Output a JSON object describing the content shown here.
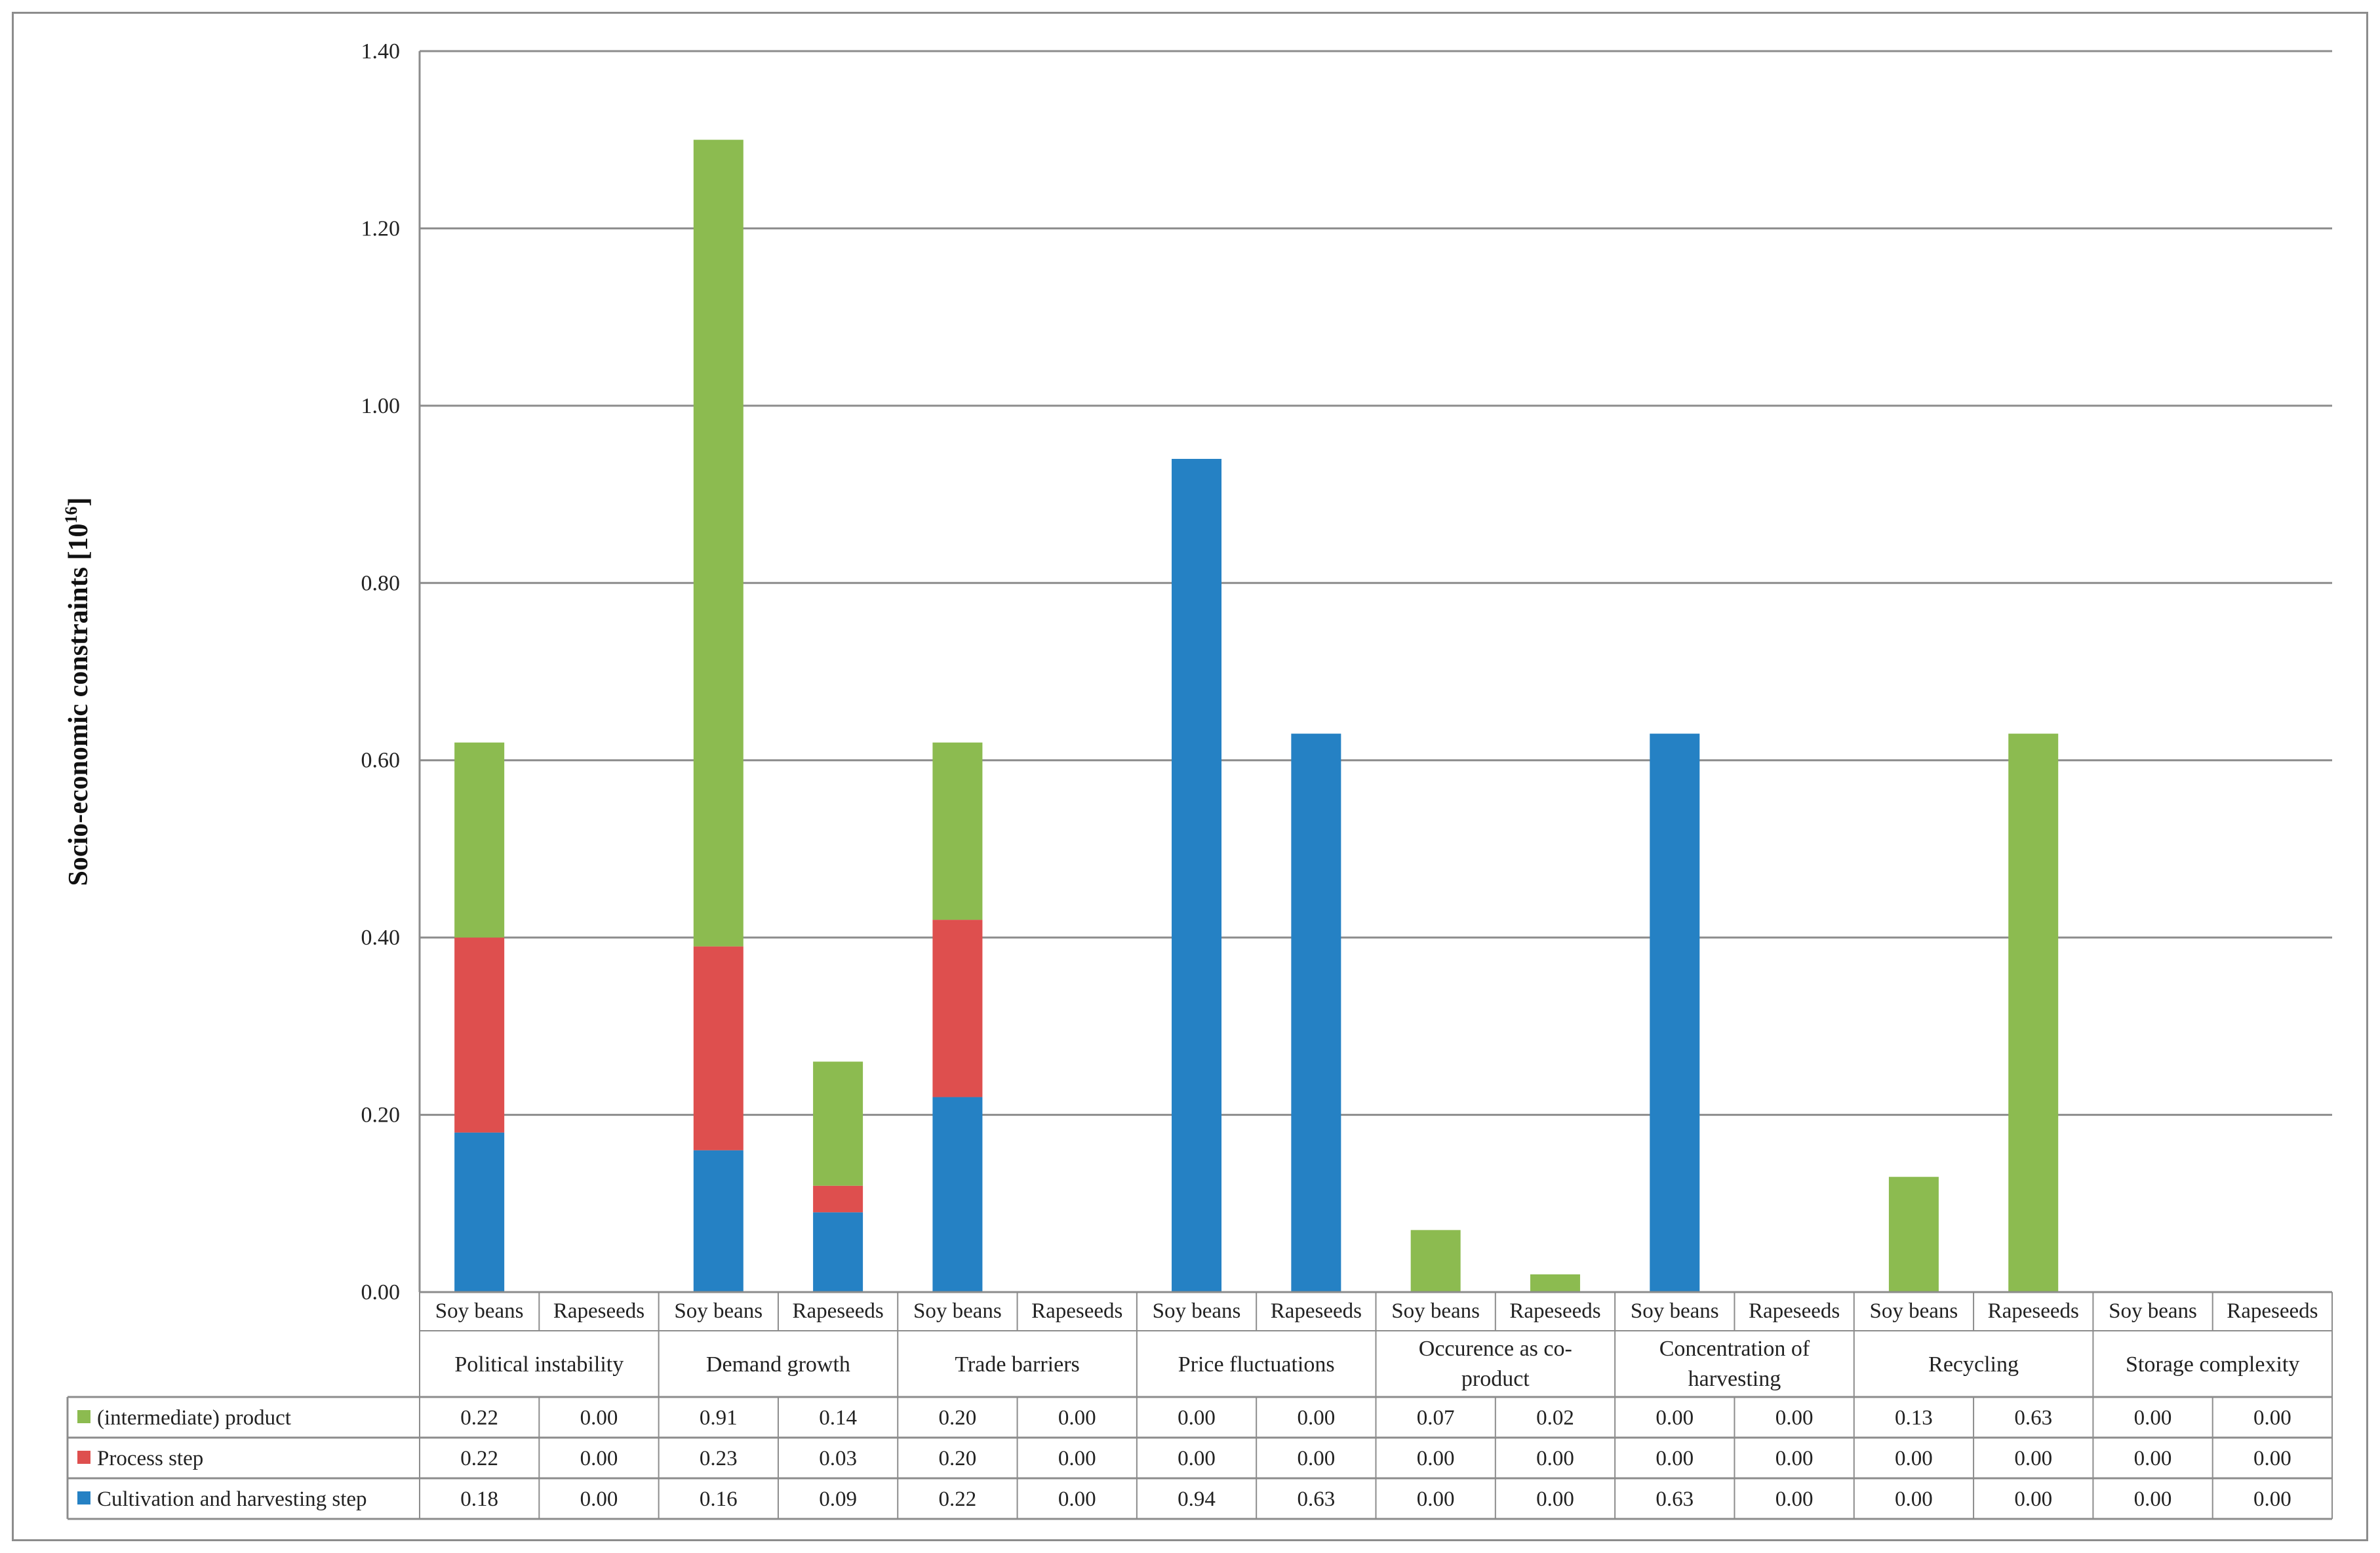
{
  "chart_data": {
    "type": "bar",
    "stacked": true,
    "ylabel": "Socio-economic constraints [10",
    "ylabel_sup": "16",
    "ylabel_suffix": "]",
    "ylim": [
      0,
      1.4
    ],
    "yticks": [
      "0.00",
      "0.20",
      "0.40",
      "0.60",
      "0.80",
      "1.00",
      "1.20",
      "1.40"
    ],
    "grid": true,
    "groups": [
      {
        "label": [
          "Political instability"
        ]
      },
      {
        "label": [
          "Demand growth"
        ]
      },
      {
        "label": [
          "Trade barriers"
        ]
      },
      {
        "label": [
          "Price fluctuations"
        ]
      },
      {
        "label": [
          "Occurence as co-",
          "product"
        ]
      },
      {
        "label": [
          "Concentration of",
          "harvesting"
        ]
      },
      {
        "label": [
          "Recycling"
        ]
      },
      {
        "label": [
          "Storage complexity"
        ]
      }
    ],
    "subcategories": [
      "Soy beans",
      "Rapeseeds"
    ],
    "series": [
      {
        "name": "Cultivation and harvesting step",
        "color": "#2581c4",
        "values": [
          0.18,
          0.0,
          0.16,
          0.09,
          0.22,
          0.0,
          0.94,
          0.63,
          0.0,
          0.0,
          0.63,
          0.0,
          0.0,
          0.0,
          0.0,
          0.0
        ],
        "labels": [
          "0.18",
          "0.00",
          "0.16",
          "0.09",
          "0.22",
          "0.00",
          "0.94",
          "0.63",
          "0.00",
          "0.00",
          "0.63",
          "0.00",
          "0.00",
          "0.00",
          "0.00",
          "0.00"
        ]
      },
      {
        "name": "Process step",
        "color": "#de4f4e",
        "values": [
          0.22,
          0.0,
          0.23,
          0.03,
          0.2,
          0.0,
          0.0,
          0.0,
          0.0,
          0.0,
          0.0,
          0.0,
          0.0,
          0.0,
          0.0,
          0.0
        ],
        "labels": [
          "0.22",
          "0.00",
          "0.23",
          "0.03",
          "0.20",
          "0.00",
          "0.00",
          "0.00",
          "0.00",
          "0.00",
          "0.00",
          "0.00",
          "0.00",
          "0.00",
          "0.00",
          "0.00"
        ]
      },
      {
        "name": "(intermediate) product",
        "color": "#8cbb50",
        "values": [
          0.22,
          0.0,
          0.91,
          0.14,
          0.2,
          0.0,
          0.0,
          0.0,
          0.07,
          0.02,
          0.0,
          0.0,
          0.13,
          0.63,
          0.0,
          0.0
        ],
        "labels": [
          "0.22",
          "0.00",
          "0.91",
          "0.14",
          "0.20",
          "0.00",
          "0.00",
          "0.00",
          "0.07",
          "0.02",
          "0.00",
          "0.00",
          "0.13",
          "0.63",
          "0.00",
          "0.00"
        ]
      }
    ],
    "table_row_order": [
      2,
      1,
      0
    ]
  }
}
